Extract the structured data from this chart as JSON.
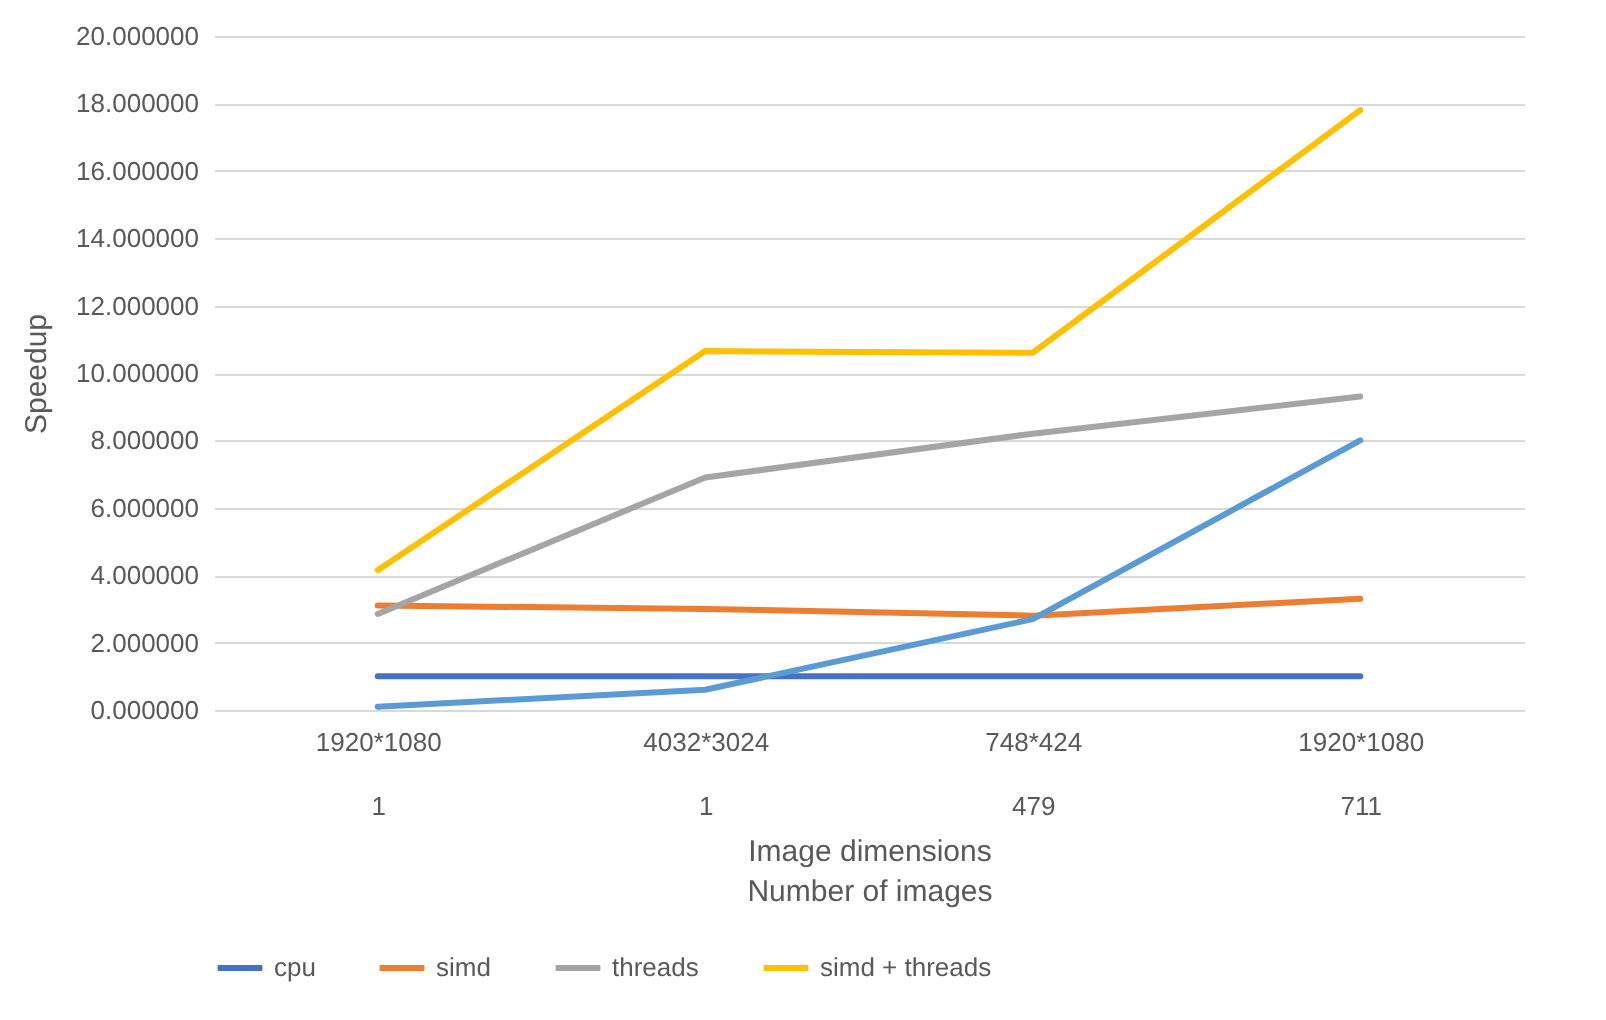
{
  "chart_data": {
    "type": "line",
    "xlabel": "Image dimensions\nNumber of images",
    "ylabel": "Speedup",
    "categories": [
      "1920*1080\n1",
      "4032*3024\n1",
      "748*424\n479",
      "1920*1080\n711"
    ],
    "series": [
      {
        "name": "cpu",
        "color": "#4472c4",
        "values": [
          1,
          1,
          1,
          1
        ]
      },
      {
        "name": "simd",
        "color": "#ed7d31",
        "values": [
          3.1,
          3.0,
          2.8,
          3.3
        ]
      },
      {
        "name": "threads",
        "color": "#a5a5a5",
        "values": [
          2.85,
          6.9,
          8.2,
          9.3
        ]
      },
      {
        "name": "simd + threads",
        "color": "#ffc000",
        "values": [
          4.15,
          10.65,
          10.6,
          17.8
        ]
      },
      {
        "color": "#5b9bd5",
        "values": [
          0.1,
          0.6,
          2.7,
          8.0
        ]
      }
    ],
    "ylim": [
      0,
      20
    ],
    "yticks": [
      {
        "value": 0,
        "label": "0.000000"
      },
      {
        "value": 2,
        "label": "2.000000"
      },
      {
        "value": 4,
        "label": "4.000000"
      },
      {
        "value": 6,
        "label": "6.000000"
      },
      {
        "value": 8,
        "label": "8.000000"
      },
      {
        "value": 10,
        "label": "10.000000"
      },
      {
        "value": 12,
        "label": "12.000000"
      },
      {
        "value": 14,
        "label": "14.000000"
      },
      {
        "value": 16,
        "label": "16.000000"
      },
      {
        "value": 18,
        "label": "18.000000"
      },
      {
        "value": 20,
        "label": "20.000000"
      }
    ],
    "grid": "y",
    "legend": "bottom",
    "marker": "none",
    "line_style": "solid"
  }
}
